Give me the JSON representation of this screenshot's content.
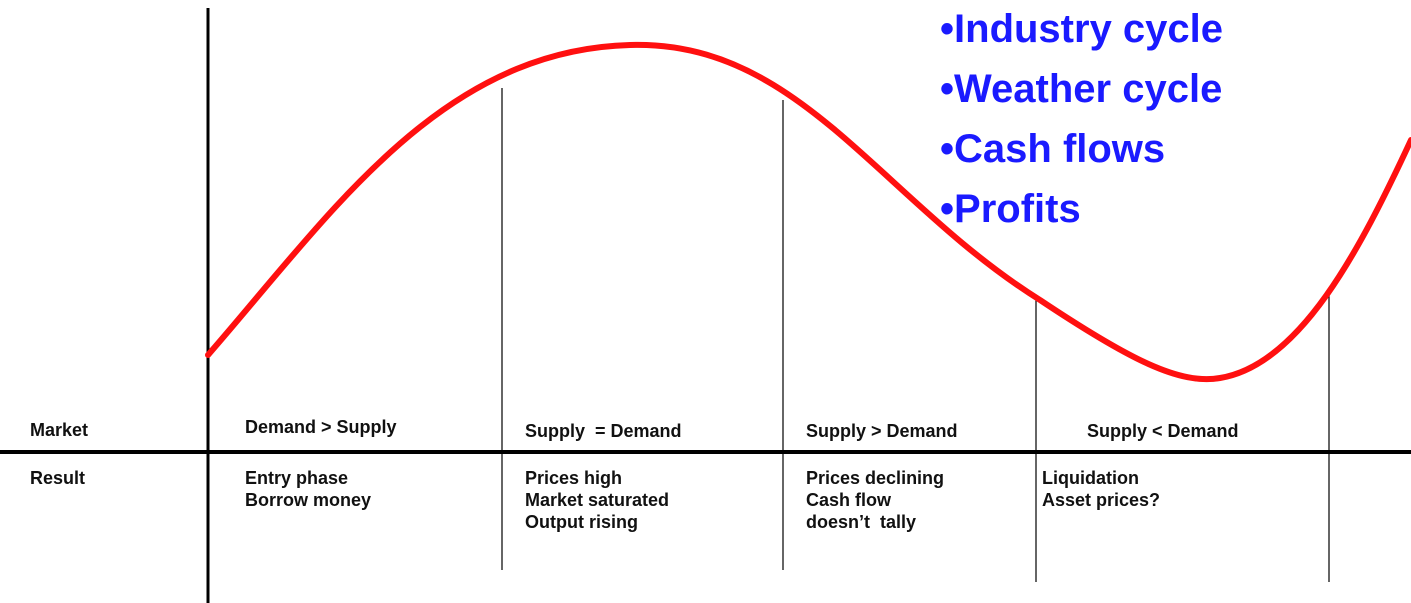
{
  "bullets": [
    "Industry cycle",
    "Weather cycle",
    "Cash flows",
    "Profits"
  ],
  "row_labels": {
    "market": "Market",
    "result": "Result"
  },
  "phases": [
    {
      "market": "Demand > Supply",
      "result": [
        "Entry phase",
        "Borrow money"
      ]
    },
    {
      "market": "Supply  = Demand",
      "result": [
        "Prices high",
        "Market saturated",
        "Output rising"
      ]
    },
    {
      "market": "Supply > Demand",
      "result": [
        "Prices declining",
        "Cash flow",
        "doesn’t  tally"
      ]
    },
    {
      "market": "Supply < Demand",
      "result": [
        "Liquidation",
        "Asset prices?"
      ]
    }
  ]
}
